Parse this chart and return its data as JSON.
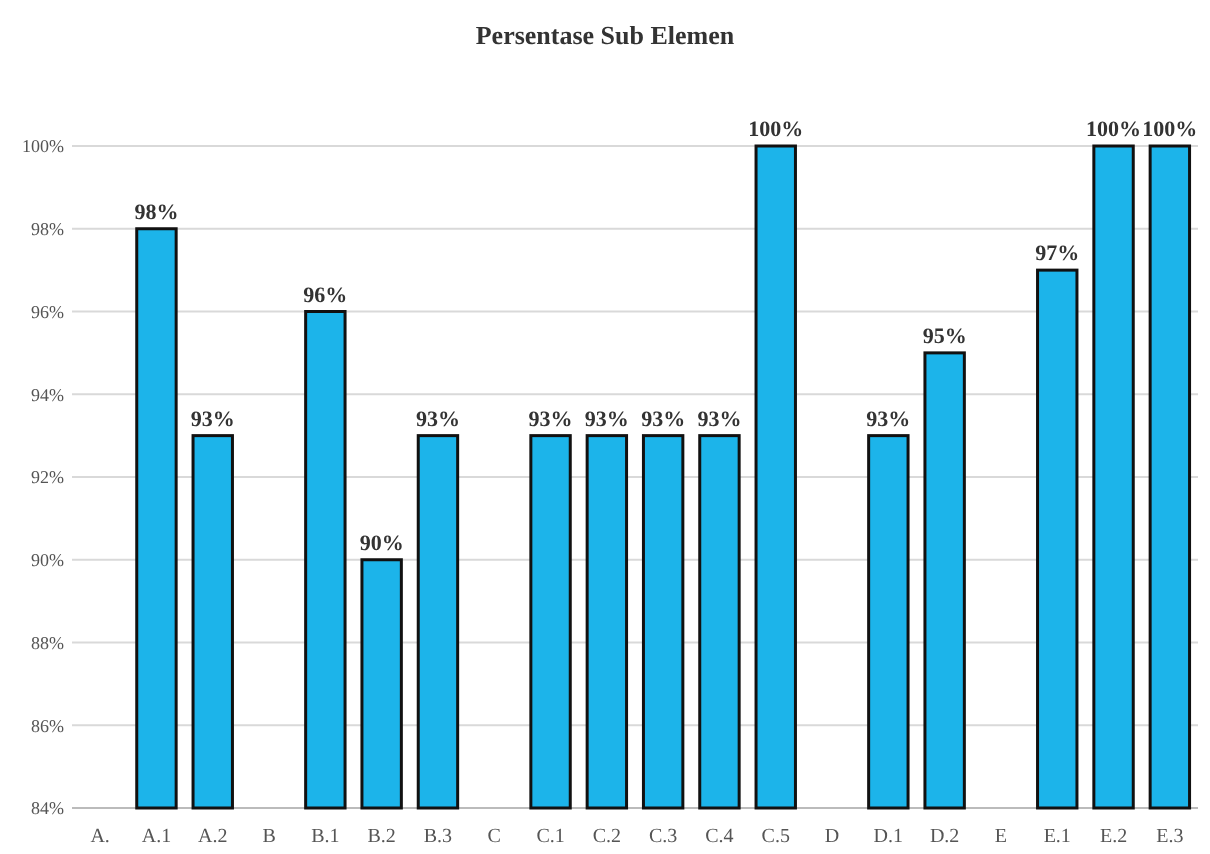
{
  "chart_data": {
    "type": "bar",
    "title": "Persentase Sub Elemen",
    "categories": [
      "A.",
      "A.1",
      "A.2",
      "B",
      "B.1",
      "B.2",
      "B.3",
      "C",
      "C.1",
      "C.2",
      "C.3",
      "C.4",
      "C.5",
      "D",
      "D.1",
      "D.2",
      "E",
      "E.1",
      "E.2",
      "E.3"
    ],
    "values": [
      null,
      98,
      93,
      null,
      96,
      90,
      93,
      null,
      93,
      93,
      93,
      93,
      100,
      null,
      93,
      95,
      null,
      97,
      100,
      100
    ],
    "value_labels": [
      null,
      "98%",
      "93%",
      null,
      "96%",
      "90%",
      "93%",
      null,
      "93%",
      "93%",
      "93%",
      "93%",
      "100%",
      null,
      "93%",
      "95%",
      null,
      "97%",
      "100%",
      "100%"
    ],
    "color": "#1cb4ea",
    "ylim": [
      84,
      100
    ],
    "yticks": [
      {
        "value": 84,
        "label": "84%"
      },
      {
        "value": 86,
        "label": "86%"
      },
      {
        "value": 88,
        "label": "88%"
      },
      {
        "value": 90,
        "label": "90%"
      },
      {
        "value": 92,
        "label": "92%"
      },
      {
        "value": 94,
        "label": "94%"
      },
      {
        "value": 96,
        "label": "96%"
      },
      {
        "value": 98,
        "label": "98%"
      },
      {
        "value": 100,
        "label": "100%"
      }
    ],
    "grid": "y"
  }
}
